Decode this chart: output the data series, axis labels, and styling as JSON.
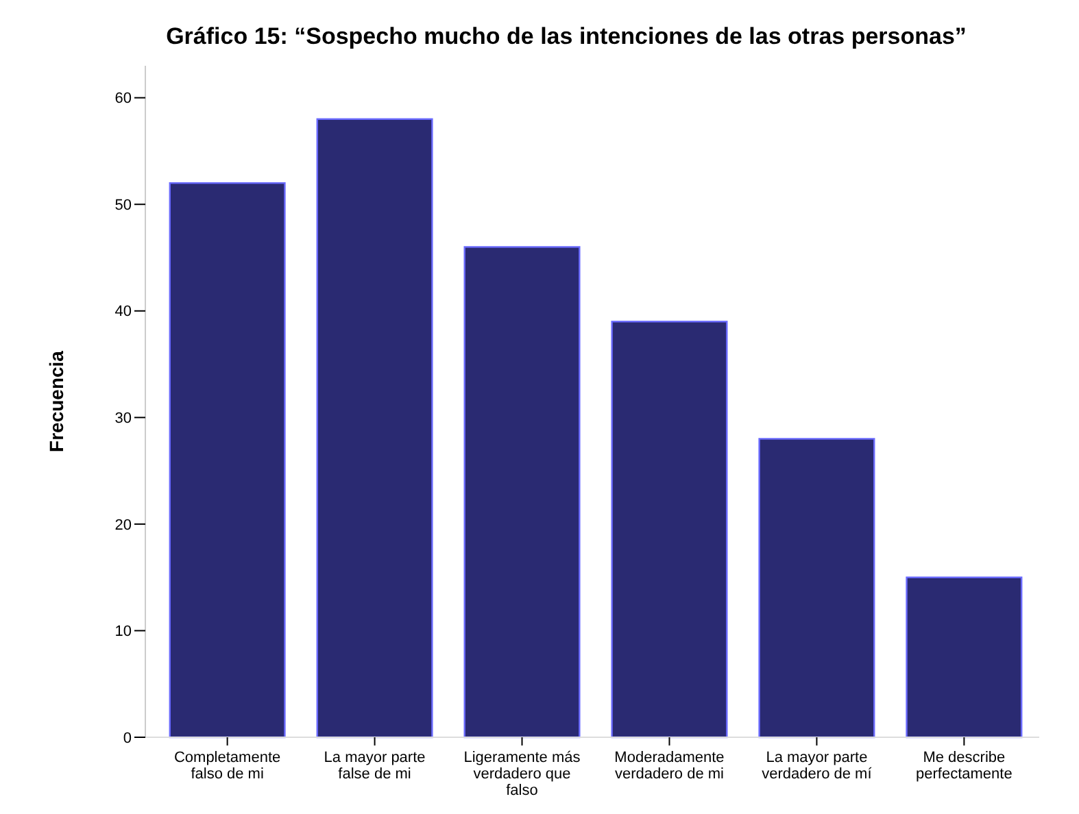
{
  "chart_data": {
    "type": "bar",
    "title": "Gráfico 15: “Sospecho mucho de las intenciones de las otras personas”",
    "ylabel": "Frecuencia",
    "categories": [
      "Completamente falso de mi",
      "La mayor parte false de mi",
      "Ligeramente más verdadero que falso",
      "Moderadamente verdadero de mi",
      "La mayor parte verdadero de mí",
      "Me describe perfectamente"
    ],
    "values": [
      52,
      58,
      46,
      39,
      28,
      15
    ],
    "color": "#2a2a72",
    "ylim": [
      0,
      63
    ],
    "yticks": [
      0,
      10,
      20,
      30,
      40,
      50,
      60
    ],
    "grid": false
  }
}
